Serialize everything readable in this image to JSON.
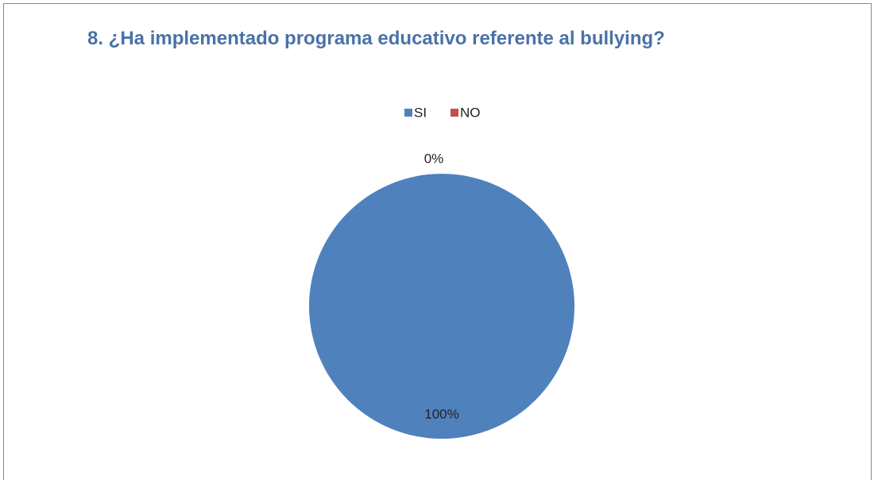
{
  "chart_data": {
    "type": "pie",
    "title": "8. ¿Ha implementado programa educativo referente al bullying?",
    "categories": [
      "SI",
      "NO"
    ],
    "values": [
      100,
      0
    ],
    "value_labels": [
      "100%",
      "0%"
    ],
    "colors": [
      "#4f81bd",
      "#c0504d"
    ],
    "legend": "top"
  }
}
